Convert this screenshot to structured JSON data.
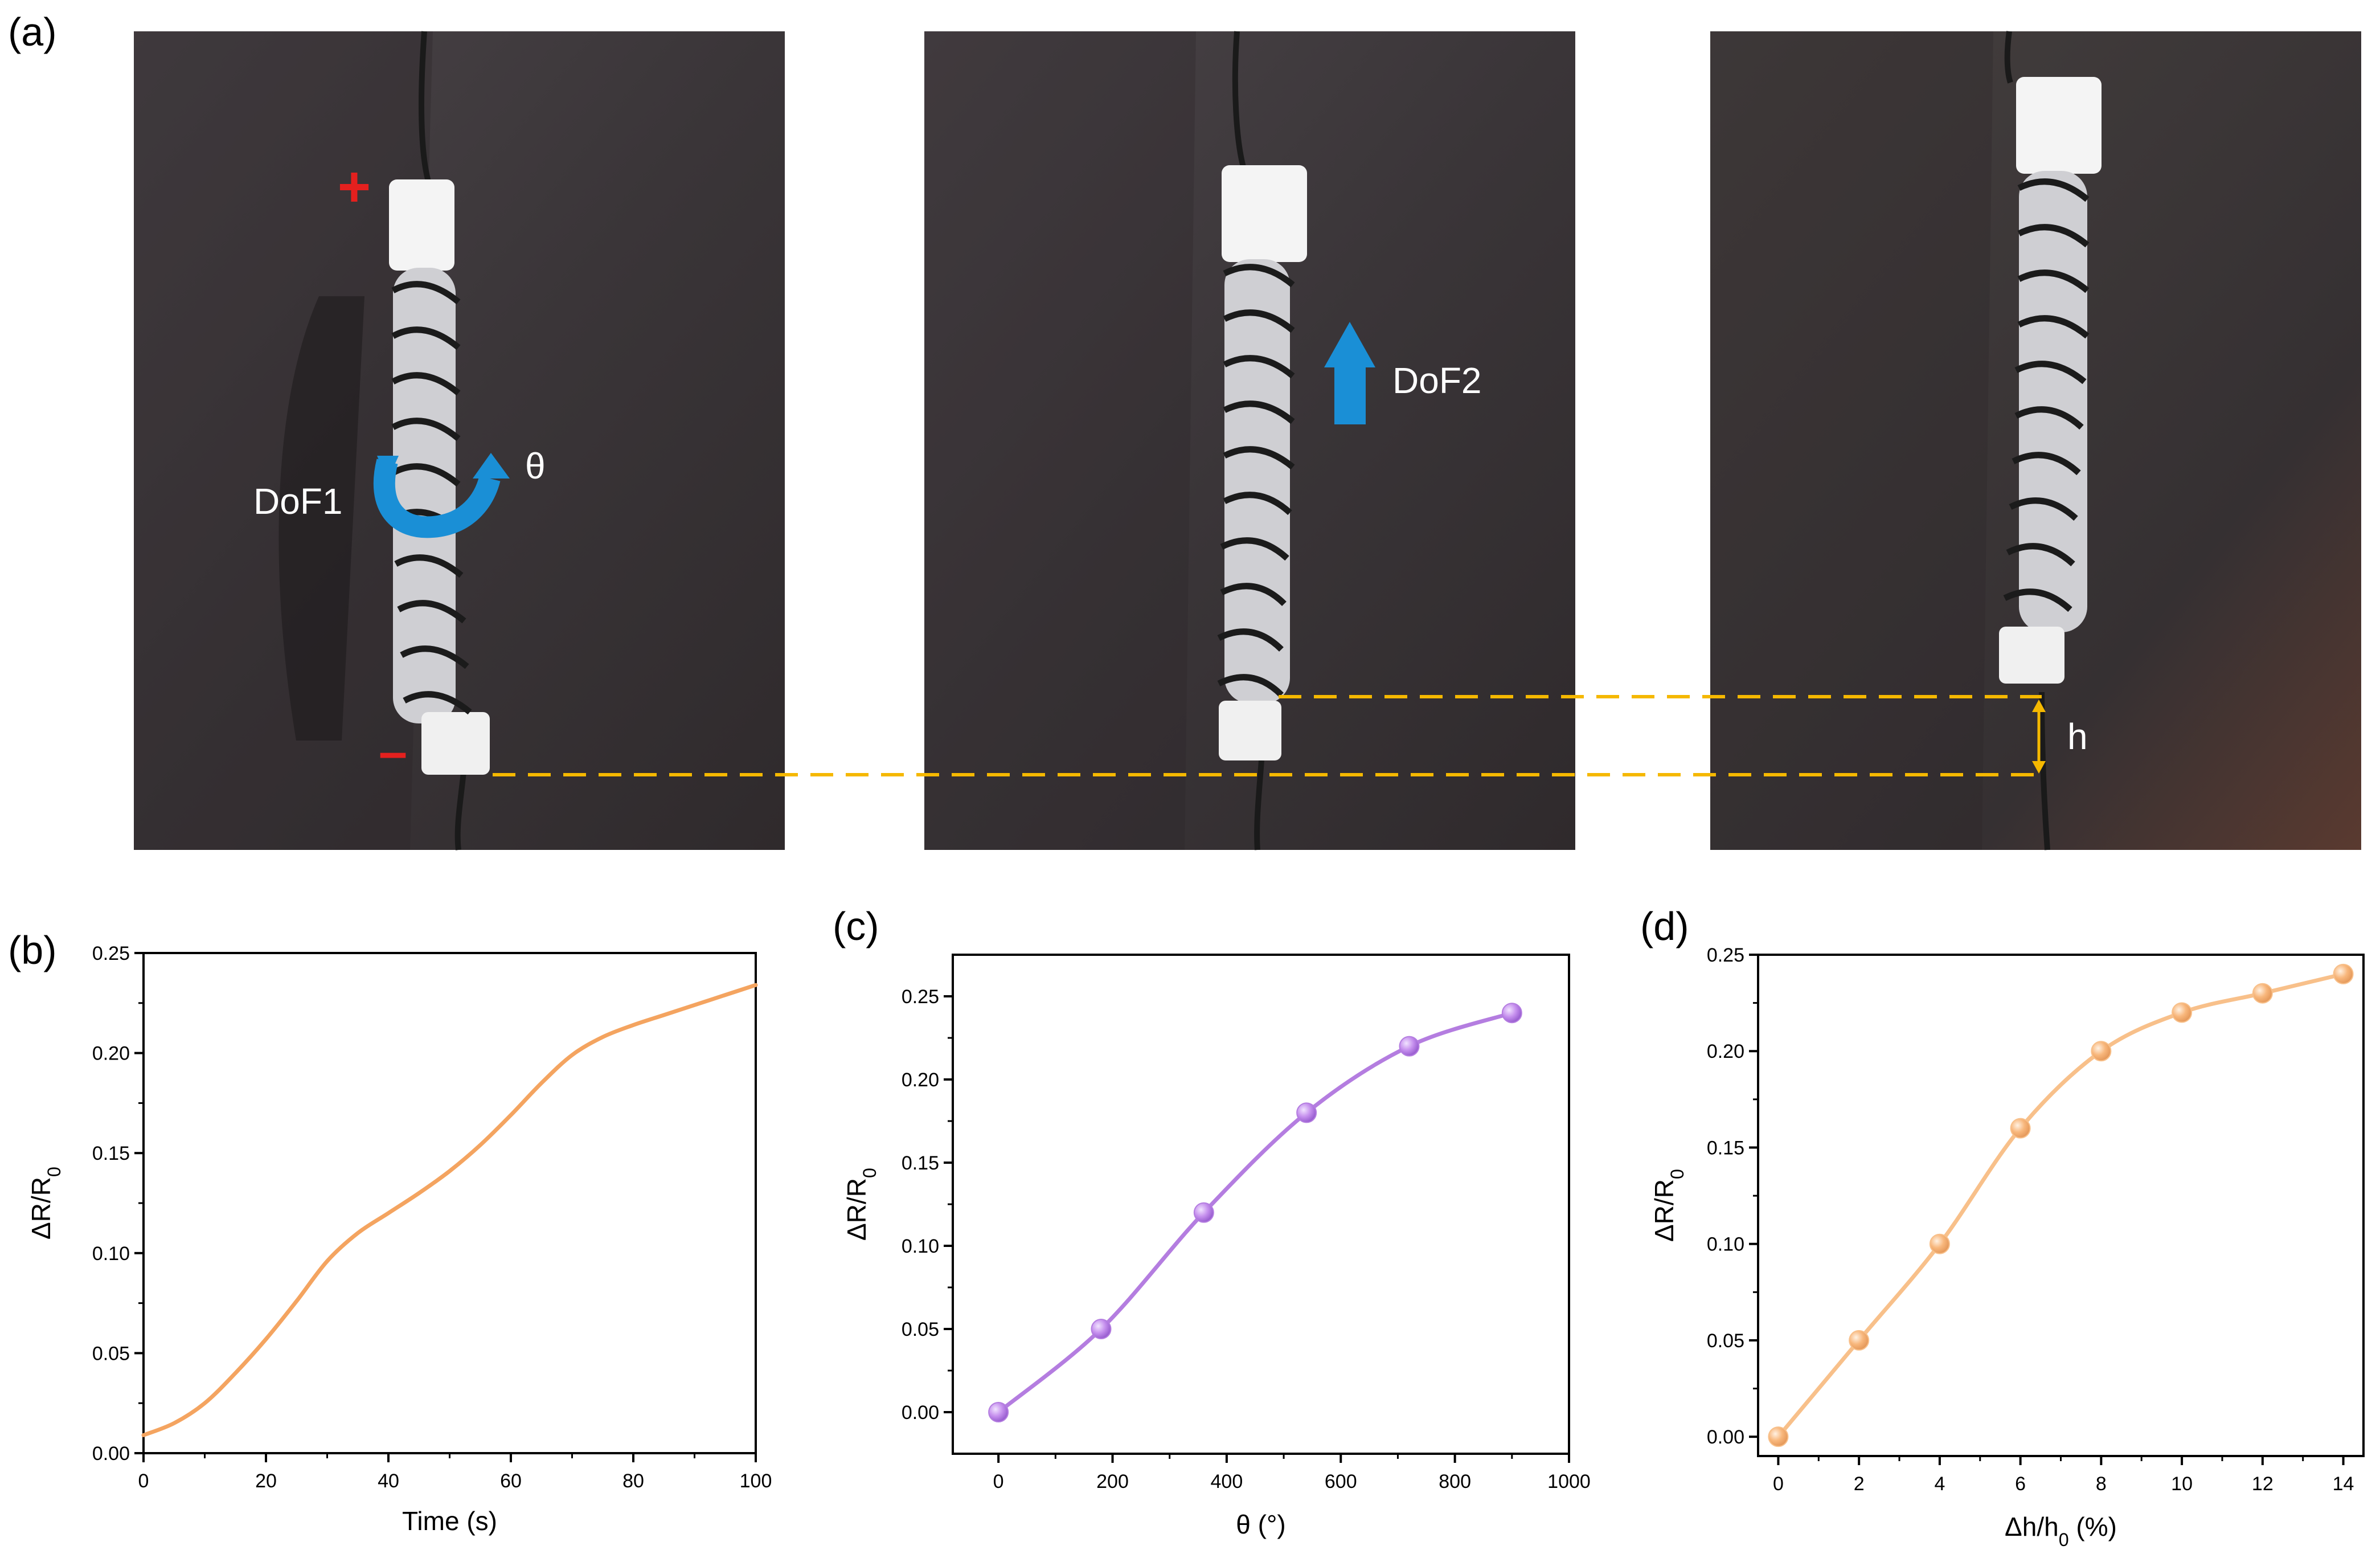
{
  "panel_labels": {
    "a": "(a)",
    "b": "(b)",
    "c": "(c)",
    "d": "(d)"
  },
  "photos": [
    {
      "plus_label": "+",
      "minus_label": "–",
      "dof_label": "DoF1",
      "theta_label": "θ"
    },
    {
      "dof_label": "DoF2"
    },
    {
      "h_label": "h"
    }
  ],
  "colors": {
    "bg_dark": "#3b3638",
    "dashed_line": "#f5b800",
    "blue_arrow": "#1a8fd6",
    "red_marker": "#e4201e",
    "b_line": "#f4a460",
    "c_line": "#b47de0",
    "c_marker": "#c690ee",
    "d_line": "#f8c08a",
    "d_marker": "#f8b77c"
  },
  "chart_data": [
    {
      "type": "line",
      "panel": "b",
      "xlabel": "Time (s)",
      "ylabel": "ΔR/R0",
      "xlim": [
        0,
        100
      ],
      "ylim": [
        0.0,
        0.25
      ],
      "xticks": [
        "0",
        "20",
        "40",
        "60",
        "80",
        "100"
      ],
      "yticks": [
        "0.00",
        "0.05",
        "0.10",
        "0.15",
        "0.20",
        "0.25"
      ],
      "x": [
        0,
        5,
        10,
        15,
        20,
        25,
        30,
        35,
        40,
        45,
        50,
        55,
        60,
        65,
        70,
        75,
        80,
        85,
        90,
        95,
        100
      ],
      "y": [
        0.009,
        0.015,
        0.025,
        0.04,
        0.057,
        0.076,
        0.096,
        0.11,
        0.12,
        0.13,
        0.141,
        0.154,
        0.169,
        0.185,
        0.199,
        0.208,
        0.214,
        0.219,
        0.224,
        0.229,
        0.234
      ],
      "markers": false
    },
    {
      "type": "line",
      "panel": "c",
      "xlabel": "θ (°)",
      "ylabel": "ΔR/R0",
      "xlim": [
        -80,
        1000
      ],
      "ylim": [
        -0.025,
        0.275
      ],
      "xticks": [
        "0",
        "200",
        "400",
        "600",
        "800",
        "1000"
      ],
      "yticks": [
        "0.00",
        "0.05",
        "0.10",
        "0.15",
        "0.20",
        "0.25"
      ],
      "x": [
        0,
        180,
        360,
        540,
        720,
        900
      ],
      "y": [
        0.0,
        0.05,
        0.12,
        0.18,
        0.22,
        0.24
      ],
      "markers": true
    },
    {
      "type": "line",
      "panel": "d",
      "xlabel": "Δh/h0 (%)",
      "ylabel": "ΔR/R0",
      "xlim": [
        -0.5,
        14.5
      ],
      "ylim": [
        -0.01,
        0.25
      ],
      "xticks": [
        "0",
        "2",
        "4",
        "6",
        "8",
        "10",
        "12",
        "14"
      ],
      "yticks": [
        "0.00",
        "0.05",
        "0.10",
        "0.15",
        "0.20",
        "0.25"
      ],
      "x": [
        0,
        2,
        4,
        6,
        8,
        10,
        12,
        14
      ],
      "y": [
        0.0,
        0.05,
        0.1,
        0.16,
        0.2,
        0.22,
        0.23,
        0.24
      ],
      "markers": true
    }
  ]
}
